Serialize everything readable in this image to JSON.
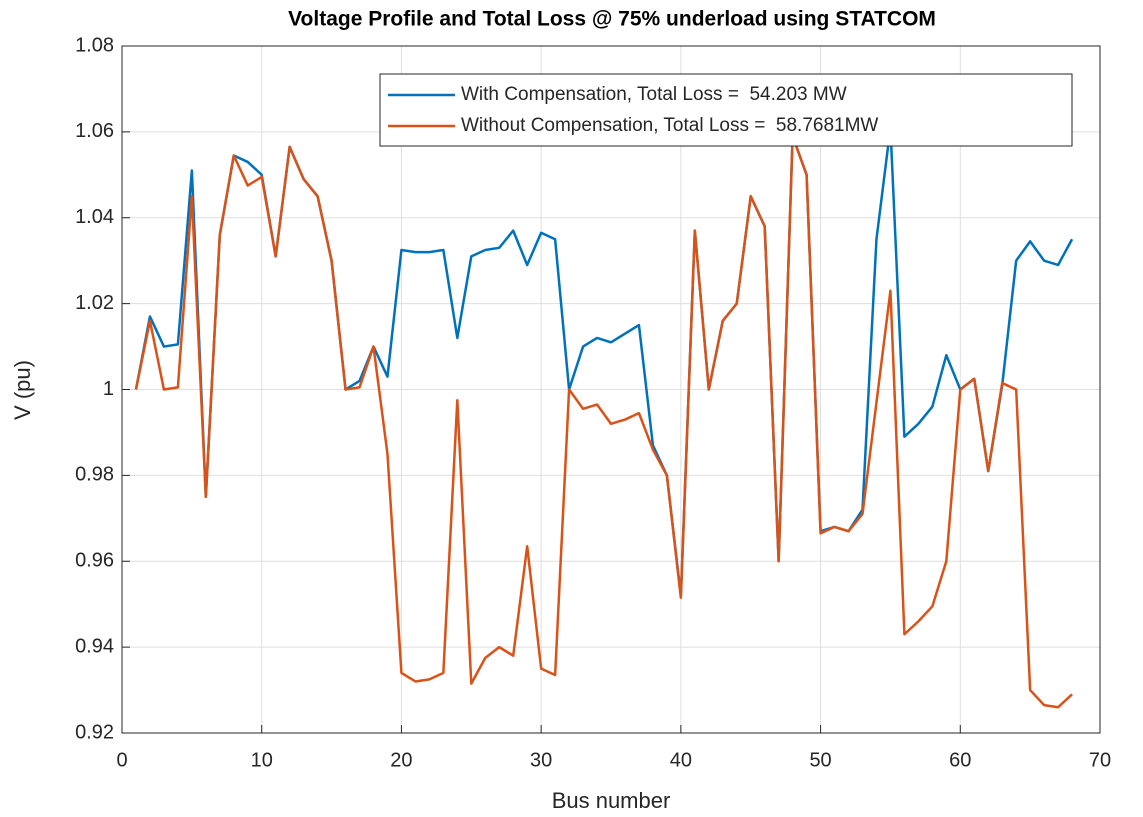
{
  "chart_data": {
    "type": "line",
    "title": "Voltage Profile and Total Loss @ 75% underload using STATCOM",
    "x_label": "Bus number",
    "y_label": "V (pu)",
    "x": [
      1,
      2,
      3,
      4,
      5,
      6,
      7,
      8,
      9,
      10,
      11,
      12,
      13,
      14,
      15,
      16,
      17,
      18,
      19,
      20,
      21,
      22,
      23,
      24,
      25,
      26,
      27,
      28,
      29,
      30,
      31,
      32,
      33,
      34,
      35,
      36,
      37,
      38,
      39,
      40,
      41,
      42,
      43,
      44,
      45,
      46,
      47,
      48,
      49,
      50,
      51,
      52,
      53,
      54,
      55,
      56,
      57,
      58,
      59,
      60,
      61,
      62,
      63,
      64,
      65,
      66,
      67,
      68
    ],
    "series": [
      {
        "name": "With Compensation, Total Loss =  54.203 MW",
        "color": "#0072BD",
        "values": [
          1.0,
          1.017,
          1.01,
          1.0105,
          1.051,
          0.975,
          1.036,
          1.0545,
          1.053,
          1.05,
          1.031,
          1.0565,
          1.049,
          1.045,
          1.03,
          1.0,
          1.002,
          1.01,
          1.003,
          1.0325,
          1.032,
          1.032,
          1.0325,
          1.012,
          1.031,
          1.0325,
          1.033,
          1.037,
          1.029,
          1.0365,
          1.035,
          1.0,
          1.01,
          1.012,
          1.011,
          1.013,
          1.015,
          0.987,
          0.98,
          0.952,
          1.037,
          1.0,
          1.016,
          1.02,
          1.045,
          1.038,
          0.96,
          1.059,
          1.05,
          0.967,
          0.968,
          0.967,
          0.972,
          1.035,
          1.061,
          0.989,
          0.992,
          0.996,
          1.008,
          1.0,
          1.0025,
          0.981,
          1.001,
          1.03,
          1.0345,
          1.03,
          1.029,
          1.035
        ]
      },
      {
        "name": "Without Compensation, Total Loss =  58.7681MW",
        "color": "#D95319",
        "values": [
          1.0,
          1.016,
          1.0,
          1.0005,
          1.045,
          0.975,
          1.036,
          1.0545,
          1.0475,
          1.0495,
          1.031,
          1.0565,
          1.049,
          1.045,
          1.03,
          1.0,
          1.0005,
          1.01,
          0.985,
          0.934,
          0.932,
          0.9325,
          0.934,
          0.9975,
          0.9315,
          0.9375,
          0.94,
          0.938,
          0.9635,
          0.935,
          0.9335,
          1.0,
          0.9955,
          0.9965,
          0.992,
          0.993,
          0.9945,
          0.986,
          0.98,
          0.9515,
          1.037,
          1.0,
          1.016,
          1.02,
          1.045,
          1.038,
          0.96,
          1.059,
          1.05,
          0.9665,
          0.968,
          0.967,
          0.971,
          0.997,
          1.023,
          0.943,
          0.946,
          0.9495,
          0.96,
          1.0,
          1.0025,
          0.981,
          1.0015,
          1.0,
          0.93,
          0.9265,
          0.926,
          0.929
        ]
      }
    ],
    "xlim": [
      0,
      70
    ],
    "xticks": [
      0,
      10,
      20,
      30,
      40,
      50,
      60,
      70
    ],
    "ylim": [
      0.92,
      1.08
    ],
    "yticks": [
      0.92,
      0.94,
      0.96,
      0.98,
      1,
      1.02,
      1.04,
      1.06,
      1.08
    ],
    "grid": true,
    "legend": "northeast"
  }
}
